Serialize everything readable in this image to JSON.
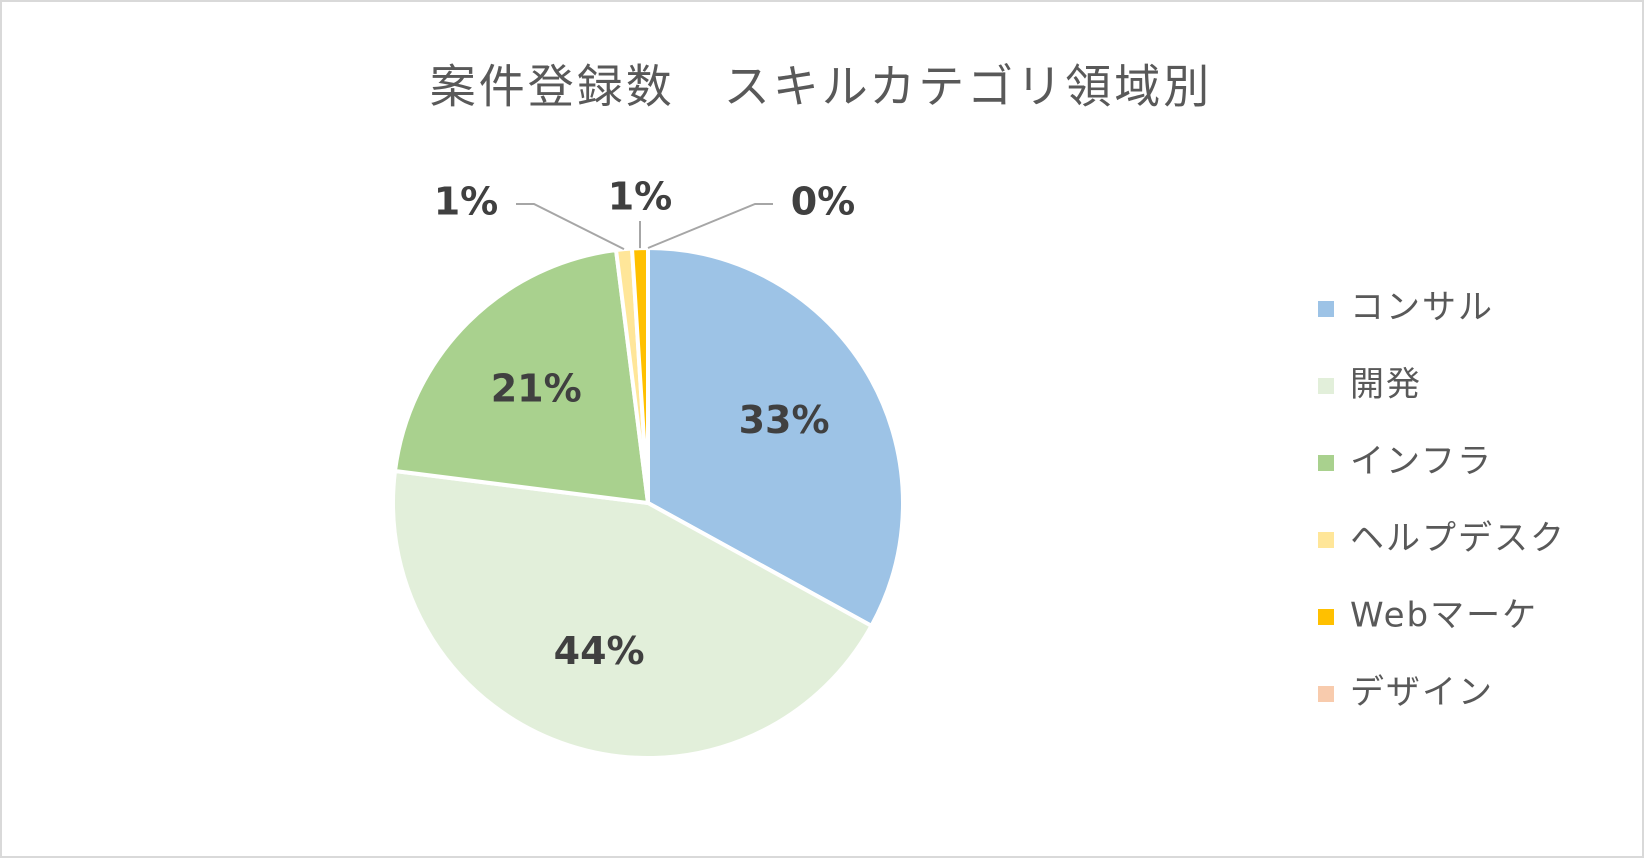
{
  "chart_data": {
    "type": "pie",
    "title": "案件登録数　スキルカテゴリ領域別",
    "categories": [
      "コンサル",
      "開発",
      "インフラ",
      "ヘルプデスク",
      "Webマーケ",
      "デザイン"
    ],
    "values": [
      33,
      44,
      21,
      1,
      1,
      0
    ],
    "value_labels": [
      "33%",
      "44%",
      "21%",
      "1%",
      "1%",
      "0%"
    ],
    "colors": [
      "#9dc3e6",
      "#e2efda",
      "#a9d18e",
      "#ffe699",
      "#ffc000",
      "#f8cbad"
    ],
    "legend": "right"
  }
}
